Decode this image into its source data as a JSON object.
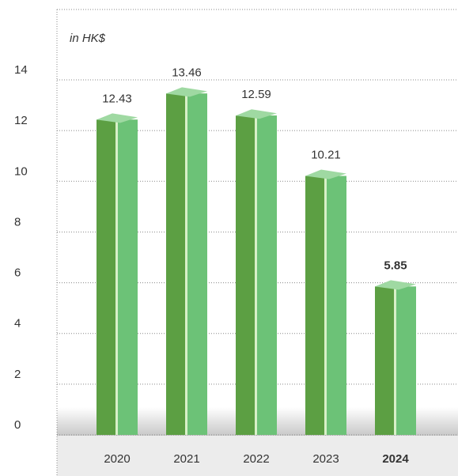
{
  "chart_data": {
    "type": "bar3d",
    "unit_label": "in HK$",
    "categories": [
      "2020",
      "2021",
      "2022",
      "2023",
      "2024"
    ],
    "values": [
      12.43,
      13.46,
      12.59,
      10.21,
      5.85
    ],
    "highlight_category": "2024",
    "color": "#5c9f43",
    "ylim": [
      0,
      14
    ],
    "yticks": [
      0,
      2,
      4,
      6,
      8,
      10,
      12,
      14
    ],
    "grid": true
  }
}
